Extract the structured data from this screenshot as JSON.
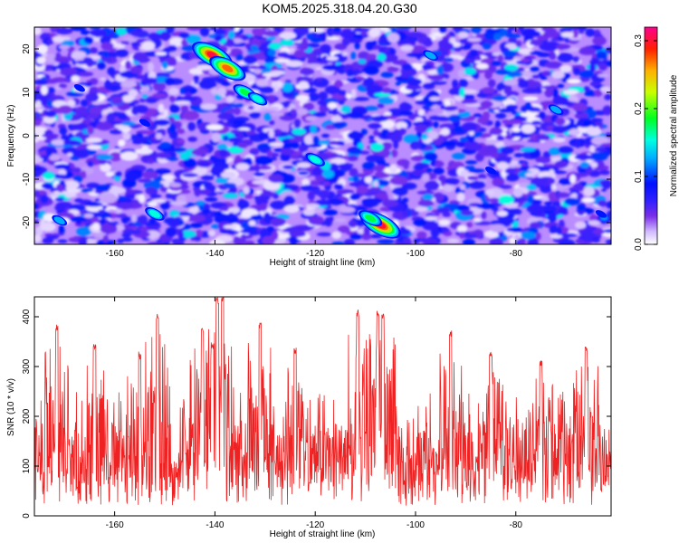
{
  "title": "KOM5.2025.318.04.20.G30",
  "chart_data": [
    {
      "type": "heatmap",
      "xlabel": "Height of straight line (km)",
      "ylabel": "Frequency (Hz)",
      "xlim": [
        -176,
        -61
      ],
      "ylim": [
        -25,
        25
      ],
      "xticks": [
        -160,
        -140,
        -120,
        -100,
        -80
      ],
      "yticks": [
        -20,
        -10,
        0,
        10,
        20
      ],
      "colorbar": {
        "label": "Normalized spectral amplitude",
        "range": [
          0.0,
          0.32
        ],
        "ticks": [
          0.0,
          0.1,
          0.2,
          0.3
        ],
        "colors": [
          "#ffffff",
          "#c8a8ff",
          "#8a2be2",
          "#5a1cff",
          "#0000ff",
          "#00a0ff",
          "#00ffff",
          "#00ff00",
          "#ffff00",
          "#ff8000",
          "#ff0000",
          "#ff00a0"
        ]
      },
      "hotspots": [
        {
          "x": -140.5,
          "y": 18.5,
          "value": 0.31
        },
        {
          "x": -137.5,
          "y": 15.5,
          "value": 0.28
        },
        {
          "x": -134,
          "y": 10,
          "value": 0.2
        },
        {
          "x": -131.5,
          "y": 8.5,
          "value": 0.17
        },
        {
          "x": -120,
          "y": -5.5,
          "value": 0.16
        },
        {
          "x": -107,
          "y": -20.5,
          "value": 0.3
        },
        {
          "x": -109,
          "y": -19,
          "value": 0.2
        },
        {
          "x": -152,
          "y": -18,
          "value": 0.15
        },
        {
          "x": -171,
          "y": -19.5,
          "value": 0.12
        },
        {
          "x": -97,
          "y": 18.5,
          "value": 0.13
        },
        {
          "x": -72,
          "y": 6,
          "value": 0.12
        },
        {
          "x": -167,
          "y": 11,
          "value": 0.1
        },
        {
          "x": -154,
          "y": 3,
          "value": 0.1
        },
        {
          "x": -85,
          "y": -8,
          "value": 0.1
        },
        {
          "x": -63,
          "y": -18,
          "value": 0.09
        }
      ]
    },
    {
      "type": "line",
      "xlabel": "Height of straight line (km)",
      "ylabel": "SNR (10 * v/v)",
      "xlim": [
        -176,
        -61
      ],
      "ylim": [
        0,
        440
      ],
      "xticks": [
        -160,
        -140,
        -120,
        -100,
        -80
      ],
      "yticks": [
        0,
        100,
        200,
        300,
        400
      ],
      "series": [
        {
          "name": "SNR",
          "color": "#ee2222",
          "x_range": [
            -176,
            -61
          ],
          "baseline": 120,
          "spread": [
            20,
            250
          ],
          "peaks": [
            {
              "x": -139.5,
              "value": 440
            },
            {
              "x": -138.5,
              "value": 440
            },
            {
              "x": -140.5,
              "value": 350
            },
            {
              "x": -151.5,
              "value": 410
            },
            {
              "x": -171.5,
              "value": 385
            },
            {
              "x": -142.5,
              "value": 380
            },
            {
              "x": -131,
              "value": 390
            },
            {
              "x": -111.5,
              "value": 415
            },
            {
              "x": -107.5,
              "value": 415
            },
            {
              "x": -106.5,
              "value": 410
            },
            {
              "x": -93,
              "value": 375
            },
            {
              "x": -66,
              "value": 340
            },
            {
              "x": -164,
              "value": 345
            },
            {
              "x": -155,
              "value": 330
            },
            {
              "x": -124,
              "value": 340
            },
            {
              "x": -85,
              "value": 330
            },
            {
              "x": -75,
              "value": 315
            }
          ]
        }
      ]
    }
  ]
}
